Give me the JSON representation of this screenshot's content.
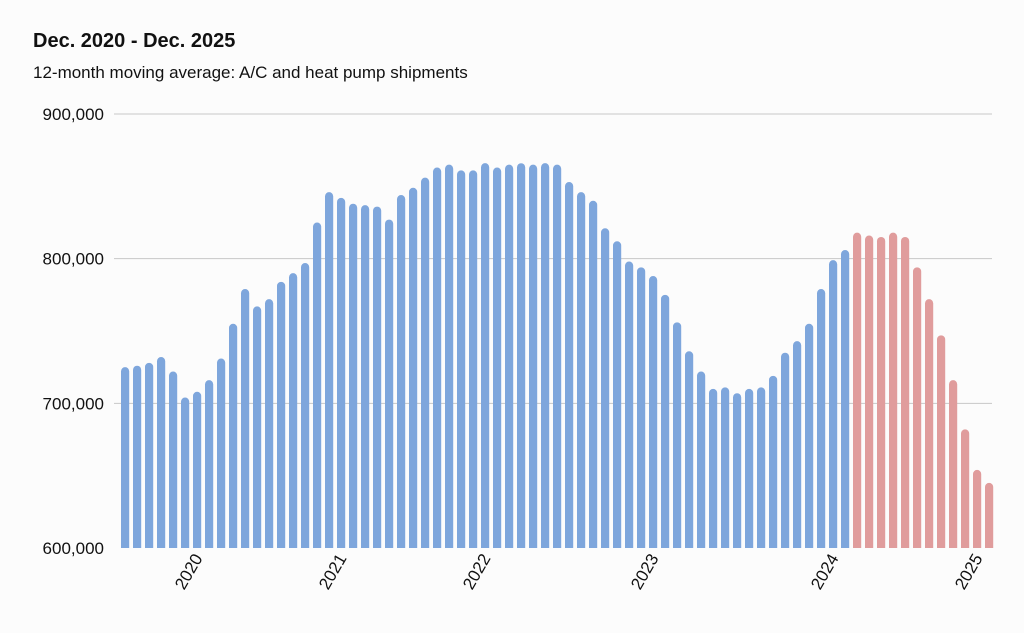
{
  "chart_data": {
    "type": "bar",
    "title": "Dec. 2020 - Dec. 2025",
    "subtitle": "12-month moving average: A/C and heat pump shipments",
    "xlabel": "",
    "ylabel": "",
    "ylim": [
      600000,
      900000
    ],
    "yticks": [
      600000,
      700000,
      800000,
      900000
    ],
    "ytick_labels": [
      "600,000",
      "700,000",
      "800,000",
      "900,000"
    ],
    "xtick_labels": [
      "2020",
      "2021",
      "2022",
      "2023",
      "2024",
      "2025"
    ],
    "xtick_bar_index": [
      6,
      18,
      30,
      44,
      59,
      71
    ],
    "grid": true,
    "legend": "none",
    "colors": {
      "historical": "#7ea6dc",
      "forecast": "#e09c9c"
    },
    "series": [
      {
        "values": [
          725000,
          726000,
          728000,
          732000,
          722000,
          704000,
          708000,
          716000,
          731000,
          755000,
          779000,
          767000,
          772000,
          784000,
          790000,
          797000,
          825000,
          846000,
          842000,
          838000,
          837000,
          836000,
          827000,
          844000,
          849000,
          856000,
          863000,
          865000,
          861000,
          861000,
          866000,
          863000,
          865000,
          866000,
          865000,
          866000,
          865000,
          853000,
          846000,
          840000,
          821000,
          812000,
          798000,
          794000,
          788000,
          775000,
          756000,
          736000,
          722000,
          710000,
          711000,
          707000,
          710000,
          711000,
          719000,
          735000,
          743000,
          755000,
          779000,
          799000,
          806000
        ]
      },
      {
        "values": [
          818000,
          816000,
          815000,
          818000,
          815000,
          794000,
          772000,
          747000,
          716000,
          682000,
          654000,
          645000
        ]
      }
    ]
  }
}
